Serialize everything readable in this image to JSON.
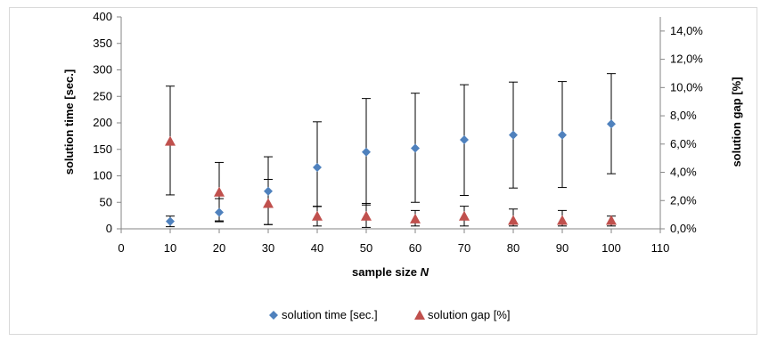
{
  "chart_data": {
    "type": "scatter",
    "x": [
      10,
      20,
      30,
      40,
      50,
      60,
      70,
      80,
      90,
      100
    ],
    "xlim": [
      0,
      110
    ],
    "x_ticks": [
      "0",
      "10",
      "20",
      "30",
      "40",
      "50",
      "60",
      "70",
      "80",
      "90",
      "100",
      "110"
    ],
    "xlabel": "sample size ",
    "xlabel_var": "N",
    "ylabel": "solution time [sec.]",
    "ylim": [
      0,
      400
    ],
    "y_ticks": [
      "0",
      "50",
      "100",
      "150",
      "200",
      "250",
      "300",
      "350",
      "400"
    ],
    "y2label": "solution gap [%]",
    "y2lim": [
      0,
      15
    ],
    "y2_ticks": [
      "0,0%",
      "2,0%",
      "4,0%",
      "6,0%",
      "8,0%",
      "10,0%",
      "12,0%",
      "14,0%"
    ],
    "grid": false,
    "legend_position": "bottom",
    "series": [
      {
        "name": "solution time [sec.]",
        "axis": "left",
        "marker": "diamond",
        "color": "#4f81bd",
        "values": [
          14,
          31,
          71,
          116,
          145,
          152,
          168,
          177,
          177,
          198
        ],
        "err_low": [
          4,
          15,
          8,
          42,
          45,
          50,
          63,
          77,
          78,
          104
        ],
        "err_high": [
          24,
          57,
          136,
          202,
          246,
          256,
          272,
          277,
          278,
          293
        ]
      },
      {
        "name": "solution gap [%]",
        "axis": "right",
        "marker": "triangle",
        "color": "#c0504d",
        "values": [
          6.2,
          2.6,
          1.8,
          0.9,
          0.9,
          0.7,
          0.9,
          0.6,
          0.6,
          0.6
        ],
        "err_low": [
          2.4,
          0.5,
          0.3,
          0.2,
          0.1,
          0.2,
          0.2,
          0.2,
          0.2,
          0.2
        ],
        "err_high": [
          10.1,
          4.7,
          3.5,
          1.6,
          1.8,
          1.3,
          1.6,
          1.4,
          1.3,
          0.9
        ]
      }
    ]
  }
}
